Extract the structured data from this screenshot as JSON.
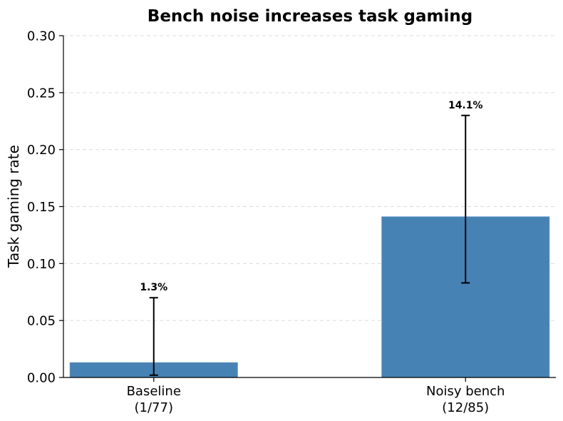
{
  "chart_data": {
    "type": "bar",
    "title": "Bench noise increases task gaming",
    "ylabel": "Task gaming rate",
    "xlabel": "",
    "ylim": [
      0,
      0.3
    ],
    "yticks": [
      0.0,
      0.05,
      0.1,
      0.15,
      0.2,
      0.25,
      0.3
    ],
    "ytick_labels": [
      "0.00",
      "0.05",
      "0.10",
      "0.15",
      "0.20",
      "0.25",
      "0.30"
    ],
    "grid": "y-dashed",
    "color": "#4682b4",
    "categories": [
      {
        "line1": "Baseline",
        "line2": "(1/77)"
      },
      {
        "line1": "Noisy bench",
        "line2": "(12/85)"
      }
    ],
    "values": [
      0.013,
      0.141
    ],
    "error_low": [
      0.002,
      0.083
    ],
    "error_high": [
      0.07,
      0.23
    ],
    "data_labels": [
      "1.3%",
      "14.1%"
    ]
  }
}
